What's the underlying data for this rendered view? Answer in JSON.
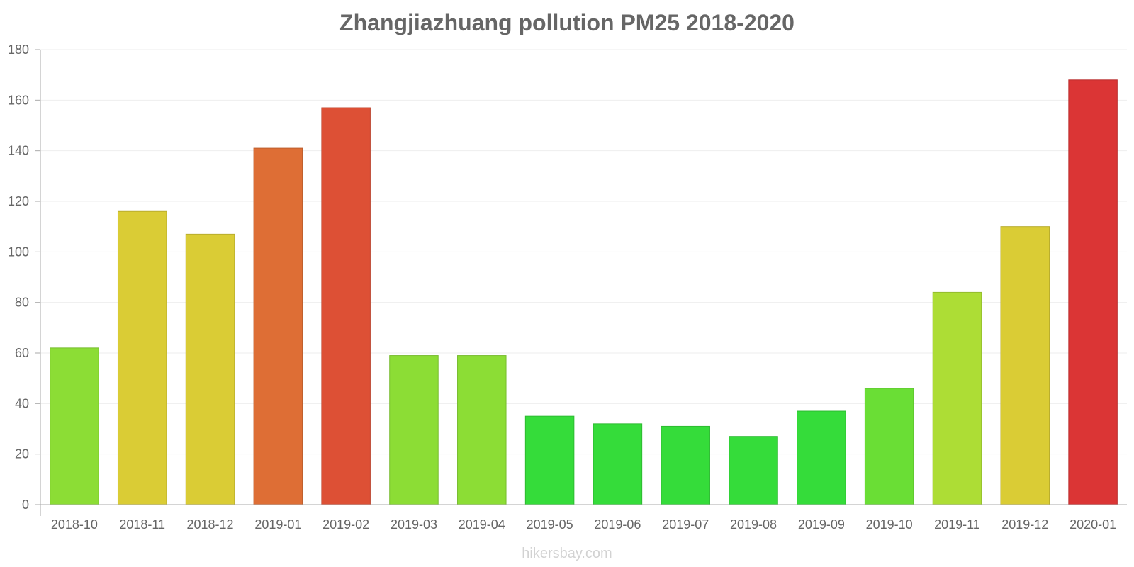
{
  "chart_data": {
    "type": "bar",
    "title": "Zhangjiazhuang pollution PM25 2018-2020",
    "categories": [
      "2018-10",
      "2018-11",
      "2018-12",
      "2019-01",
      "2019-02",
      "2019-03",
      "2019-04",
      "2019-05",
      "2019-06",
      "2019-07",
      "2019-08",
      "2019-09",
      "2019-10",
      "2019-11",
      "2019-12",
      "2020-01"
    ],
    "values": [
      62,
      116,
      107,
      141,
      157,
      59,
      59,
      35,
      32,
      31,
      27,
      37,
      46,
      84,
      110,
      168
    ],
    "colors": [
      "#8cdd35",
      "#dacc35",
      "#dacc35",
      "#de6e35",
      "#dd5035",
      "#8cdd35",
      "#8cdd35",
      "#35dc3a",
      "#35dc3a",
      "#35dc3a",
      "#35dc3a",
      "#35dc3a",
      "#6ade35",
      "#addd35",
      "#dacc35",
      "#db3535"
    ],
    "xlabel": "",
    "ylabel": "",
    "ylim": [
      0,
      180
    ],
    "yticks": [
      0,
      20,
      40,
      60,
      80,
      100,
      120,
      140,
      160,
      180
    ],
    "grid": true,
    "watermark": "hikersbay.com"
  }
}
